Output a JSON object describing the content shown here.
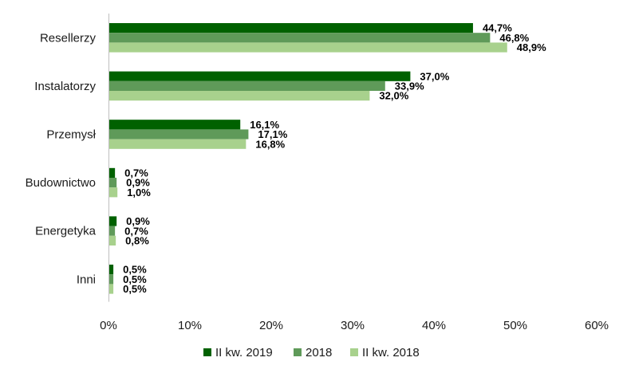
{
  "chart_data": {
    "type": "bar",
    "orientation": "horizontal",
    "categories": [
      "Resellerzy",
      "Instalatorzy",
      "Przemysł",
      "Budownictwo",
      "Energetyka",
      "Inni"
    ],
    "series": [
      {
        "name": "II kw. 2019",
        "color": "#006100",
        "values": [
          44.7,
          37.0,
          16.1,
          0.7,
          0.9,
          0.5
        ],
        "labels": [
          "44,7%",
          "37,0%",
          "16,1%",
          "0,7%",
          "0,9%",
          "0,5%"
        ]
      },
      {
        "name": "2018",
        "color": "#5f9a59",
        "values": [
          46.8,
          33.9,
          17.1,
          0.9,
          0.7,
          0.5
        ],
        "labels": [
          "46,8%",
          "33,9%",
          "17,1%",
          "0,9%",
          "0,7%",
          "0,5%"
        ]
      },
      {
        "name": "II kw. 2018",
        "color": "#a8d18d",
        "values": [
          48.9,
          32.0,
          16.8,
          1.0,
          0.8,
          0.5
        ],
        "labels": [
          "48,9%",
          "32,0%",
          "16,8%",
          "1,0%",
          "0,8%",
          "0,5%"
        ]
      }
    ],
    "xlim": [
      0,
      60
    ],
    "x_ticks": [
      0,
      10,
      20,
      30,
      40,
      50,
      60
    ],
    "x_tick_labels": [
      "0%",
      "10%",
      "20%",
      "30%",
      "40%",
      "50%",
      "60%"
    ],
    "grid": false,
    "legend": "bottom",
    "title": "",
    "xlabel": "",
    "ylabel": ""
  }
}
